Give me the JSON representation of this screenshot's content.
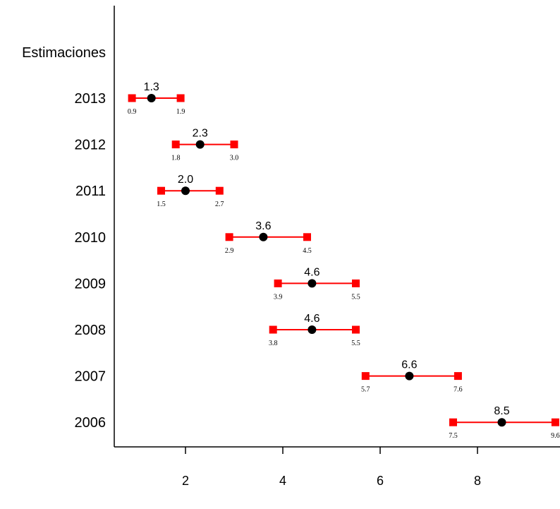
{
  "chart_data": {
    "type": "scatter",
    "subtype": "point-estimate-with-interval",
    "title": "",
    "xlabel": "",
    "ylabel": "",
    "header_label": "Estimaciones",
    "x_ticks": [
      2,
      4,
      6,
      8
    ],
    "x_tick_labels": [
      "2",
      "4",
      "6",
      "8"
    ],
    "categories": [
      "2013",
      "2012",
      "2011",
      "2010",
      "2009",
      "2008",
      "2007",
      "2006"
    ],
    "estimates": [
      1.3,
      2.3,
      2.0,
      3.6,
      4.6,
      4.6,
      6.6,
      8.5
    ],
    "estimate_labels": [
      "1.3",
      "2.3",
      "2.0",
      "3.6",
      "4.6",
      "4.6",
      "6.6",
      "8.5"
    ],
    "lower": [
      0.9,
      1.8,
      1.5,
      2.9,
      3.9,
      3.8,
      5.7,
      7.5
    ],
    "lower_labels": [
      "0.9",
      "1.8",
      "1.5",
      "2.9",
      "3.9",
      "3.8",
      "5.7",
      "7.5"
    ],
    "upper": [
      1.9,
      3.0,
      2.7,
      4.5,
      5.5,
      5.5,
      7.6,
      9.6
    ],
    "upper_labels": [
      "1.9",
      "3.0",
      "2.7",
      "4.5",
      "5.5",
      "5.5",
      "7.6",
      "9.6"
    ],
    "xlim": [
      0.0,
      9.7
    ],
    "grid": false,
    "legend": "none",
    "colors": {
      "interval": "#ff0000",
      "estimate_point": "#000000",
      "axis": "#000000"
    }
  }
}
